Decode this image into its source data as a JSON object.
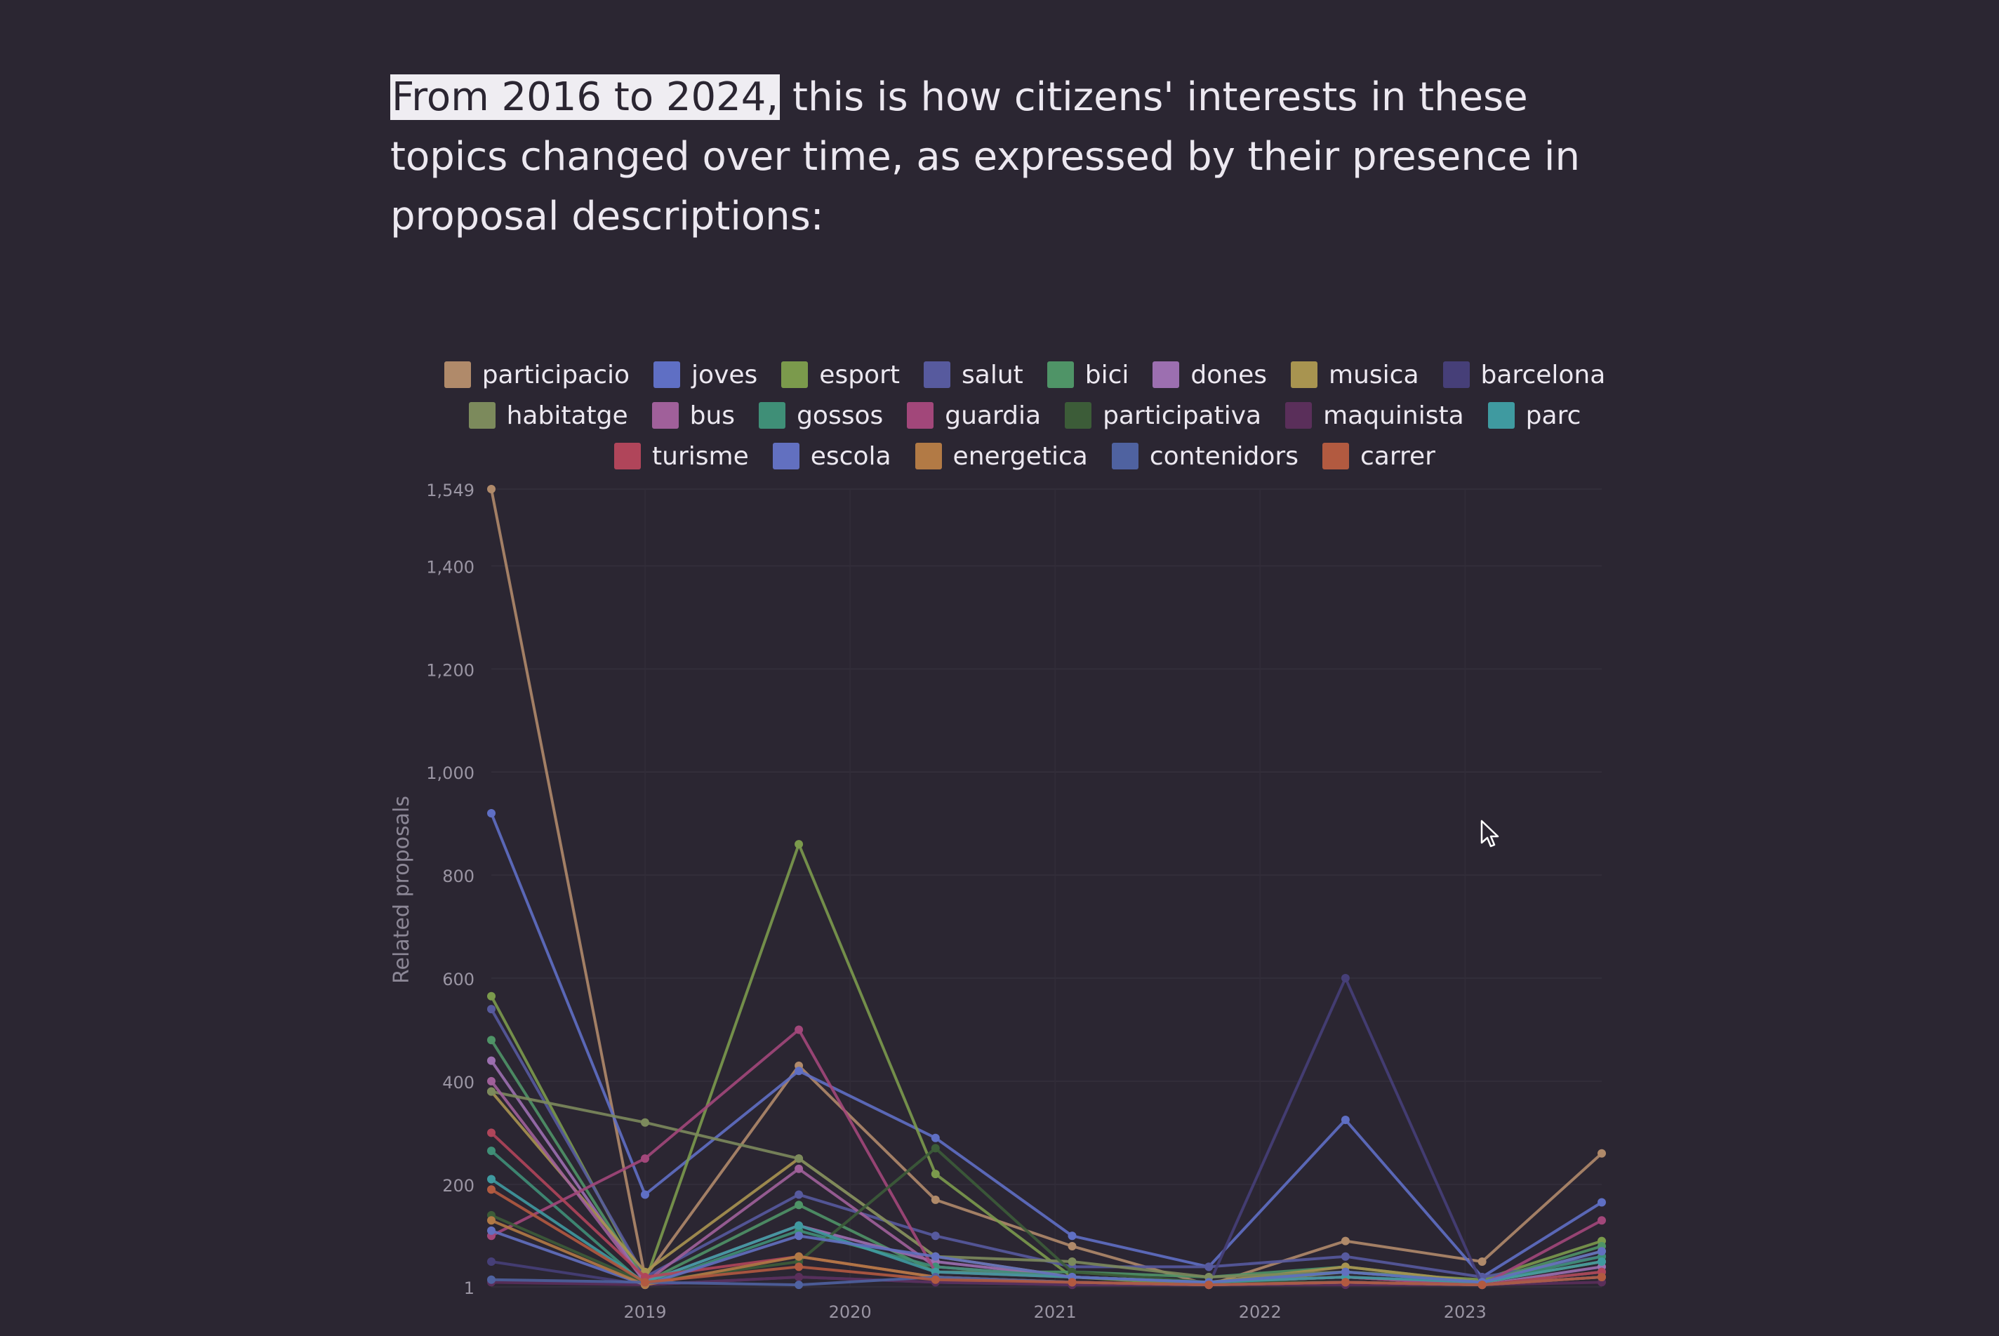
{
  "intro": {
    "highlight": "From 2016 to 2024,",
    "rest": " this is how citizens' interests in these topics changed over time, as expressed by their presence in proposal descriptions:"
  },
  "chart_data": {
    "type": "line",
    "title": "",
    "xlabel": "",
    "ylabel": "Related proposals",
    "ylim": [
      1,
      1549
    ],
    "y_ticks": [
      {
        "value": 1549,
        "label": "1,549"
      },
      {
        "value": 1400,
        "label": "1,400"
      },
      {
        "value": 1200,
        "label": "1,200"
      },
      {
        "value": 1000,
        "label": "1,000"
      },
      {
        "value": 800,
        "label": "800"
      },
      {
        "value": 600,
        "label": "600"
      },
      {
        "value": 400,
        "label": "400"
      },
      {
        "value": 200,
        "label": "200"
      },
      {
        "value": 1,
        "label": "1"
      }
    ],
    "x": [
      "2018-04",
      "2019-01",
      "2019-10",
      "2020-06",
      "2021-02",
      "2021-10",
      "2022-06",
      "2023-02",
      "2023-09"
    ],
    "x_ticks": [
      "2019",
      "2020",
      "2021",
      "2022",
      "2023"
    ],
    "legend_position": "top-center",
    "series": [
      {
        "name": "participacio",
        "color": "#b08a6a",
        "values": [
          1549,
          20,
          430,
          170,
          80,
          5,
          90,
          50,
          260
        ]
      },
      {
        "name": "joves",
        "color": "#5f6fc4",
        "values": [
          920,
          180,
          420,
          290,
          100,
          40,
          325,
          20,
          165
        ]
      },
      {
        "name": "esport",
        "color": "#7b9a4c",
        "values": [
          565,
          10,
          860,
          220,
          20,
          5,
          30,
          15,
          90
        ]
      },
      {
        "name": "salut",
        "color": "#575a9e",
        "values": [
          540,
          20,
          180,
          100,
          40,
          40,
          60,
          20,
          60
        ]
      },
      {
        "name": "bici",
        "color": "#4f9467",
        "values": [
          480,
          10,
          160,
          30,
          30,
          20,
          40,
          10,
          80
        ]
      },
      {
        "name": "dones",
        "color": "#9c6fb0",
        "values": [
          440,
          10,
          120,
          50,
          20,
          10,
          20,
          5,
          40
        ]
      },
      {
        "name": "musica",
        "color": "#a89450",
        "values": [
          380,
          30,
          250,
          60,
          20,
          10,
          40,
          10,
          50
        ]
      },
      {
        "name": "barcelona",
        "color": "#463f78",
        "values": [
          50,
          5,
          20,
          10,
          5,
          5,
          600,
          5,
          20
        ]
      },
      {
        "name": "habitatge",
        "color": "#7c8a5c",
        "values": [
          380,
          320,
          250,
          60,
          50,
          20,
          30,
          10,
          70
        ]
      },
      {
        "name": "bus",
        "color": "#a0609a",
        "values": [
          400,
          10,
          230,
          40,
          20,
          10,
          20,
          5,
          30
        ]
      },
      {
        "name": "gossos",
        "color": "#3f8f77",
        "values": [
          265,
          5,
          110,
          40,
          20,
          10,
          30,
          10,
          60
        ]
      },
      {
        "name": "guardia",
        "color": "#a2477a",
        "values": [
          100,
          250,
          500,
          30,
          20,
          10,
          20,
          5,
          130
        ]
      },
      {
        "name": "participativa",
        "color": "#3c5c38",
        "values": [
          140,
          10,
          50,
          270,
          30,
          10,
          10,
          5,
          30
        ]
      },
      {
        "name": "maquinista",
        "color": "#5a2f5a",
        "values": [
          10,
          5,
          20,
          10,
          5,
          5,
          5,
          5,
          10
        ]
      },
      {
        "name": "parc",
        "color": "#3f9aa0",
        "values": [
          210,
          10,
          120,
          30,
          20,
          10,
          20,
          10,
          50
        ]
      },
      {
        "name": "turisme",
        "color": "#b0455a",
        "values": [
          300,
          20,
          60,
          20,
          10,
          5,
          10,
          5,
          30
        ]
      },
      {
        "name": "escola",
        "color": "#6270c0",
        "values": [
          110,
          5,
          100,
          60,
          20,
          10,
          30,
          10,
          70
        ]
      },
      {
        "name": "energetica",
        "color": "#b27a45",
        "values": [
          130,
          5,
          60,
          20,
          10,
          5,
          10,
          5,
          20
        ]
      },
      {
        "name": "contenidors",
        "color": "#4f62a0",
        "values": [
          15,
          10,
          5,
          20,
          10,
          5,
          10,
          5,
          20
        ]
      },
      {
        "name": "carrer",
        "color": "#b25a40",
        "values": [
          190,
          10,
          40,
          15,
          10,
          5,
          10,
          5,
          20
        ]
      }
    ]
  }
}
